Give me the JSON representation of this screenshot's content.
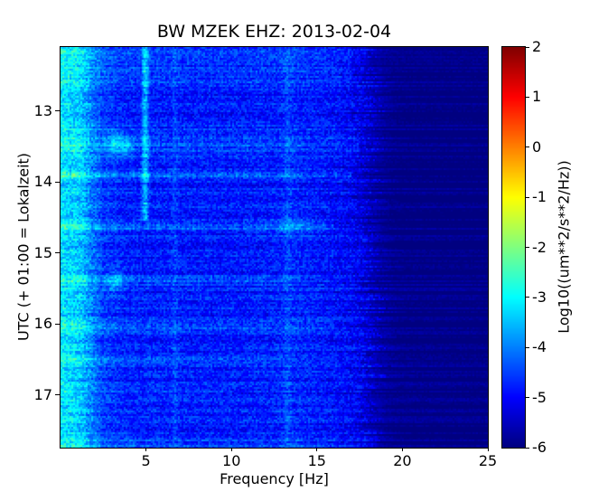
{
  "chart_data": {
    "type": "heatmap",
    "title": "BW MZEK EHZ: 2013-02-04",
    "xlabel": "Frequency [Hz]",
    "ylabel": "UTC (+ 01:00 = Lokalzeit)",
    "colorbar_label": "Log10((um**2/s**2/Hz))",
    "colormap": "jet",
    "x_range_hz": [
      0,
      25
    ],
    "x_ticks": [
      5,
      10,
      15,
      20,
      25
    ],
    "y_range_hours_utc": [
      12.1,
      17.74
    ],
    "y_ticks": [
      13,
      14,
      15,
      16,
      17
    ],
    "value_range_log10": [
      -6,
      2
    ],
    "colorbar_ticks": [
      2,
      1,
      0,
      -1,
      -2,
      -3,
      -4,
      -5,
      -6
    ],
    "background": {
      "base_curve_hz_to_log10": [
        [
          0,
          -3.2
        ],
        [
          1.2,
          -3.45
        ],
        [
          1.8,
          -4.0
        ],
        [
          2.5,
          -4.55
        ],
        [
          4,
          -4.8
        ],
        [
          10,
          -4.85
        ],
        [
          14,
          -4.75
        ],
        [
          16,
          -4.9
        ],
        [
          17.5,
          -5.1
        ],
        [
          18.6,
          -5.7
        ],
        [
          19.6,
          -5.95
        ],
        [
          25,
          -6.0
        ]
      ],
      "noise_amplitude": 0.45,
      "low_freq_noise_amplitude": 0.55,
      "dark_noise_amplitude": 0.12,
      "row_jitter_hz": 1.4,
      "row_offset_amplitude": 0.25
    },
    "vertical_lines": [
      {
        "f_hz": 4.95,
        "t_start": 12.1,
        "t_end": 14.55,
        "boost": 1.25,
        "width_hz": 0.14
      },
      {
        "f_hz": 6.7,
        "t_start": 12.1,
        "t_end": 17.74,
        "boost": 0.35,
        "width_hz": 0.12
      },
      {
        "f_hz": 13.3,
        "t_start": 12.1,
        "t_end": 17.74,
        "boost": 0.3,
        "width_hz": 0.18
      }
    ],
    "horizontal_lines": [
      {
        "t": 12.15,
        "half_height": 0.12,
        "f_end_hz": 18.0,
        "boost": 0.35
      },
      {
        "t": 12.5,
        "half_height": 0.1,
        "f_end_hz": 17.0,
        "boost": 0.4
      },
      {
        "t": 13.45,
        "half_height": 0.14,
        "f_end_hz": 17.5,
        "boost": 0.45
      },
      {
        "t": 13.9,
        "half_height": 0.035,
        "f_end_hz": 17.0,
        "boost": 0.95
      },
      {
        "t": 14.62,
        "half_height": 0.05,
        "f_end_hz": 16.0,
        "boost": 0.7
      },
      {
        "t": 15.38,
        "half_height": 0.05,
        "f_end_hz": 14.0,
        "boost": 0.55
      },
      {
        "t": 16.02,
        "half_height": 0.05,
        "f_end_hz": 16.0,
        "boost": 0.75
      },
      {
        "t": 16.5,
        "half_height": 0.04,
        "f_end_hz": 13.0,
        "boost": 0.5
      },
      {
        "t": 16.95,
        "half_height": 0.03,
        "f_end_hz": 10.0,
        "boost": 0.3
      },
      {
        "t": 17.7,
        "half_height": 0.1,
        "f_end_hz": 18.5,
        "boost": 0.4
      }
    ],
    "blobs": [
      {
        "f_hz": 3.2,
        "t": 13.45,
        "rf_hz": 0.35,
        "rt": 0.12,
        "boost": 1.0
      },
      {
        "f_hz": 3.9,
        "t": 13.5,
        "rf_hz": 0.3,
        "rt": 0.1,
        "boost": 0.8
      },
      {
        "f_hz": 3.2,
        "t": 15.4,
        "rf_hz": 0.35,
        "rt": 0.1,
        "boost": 0.9
      },
      {
        "f_hz": 13.5,
        "t": 14.62,
        "rf_hz": 1.2,
        "rt": 0.08,
        "boost": 0.5
      }
    ]
  }
}
